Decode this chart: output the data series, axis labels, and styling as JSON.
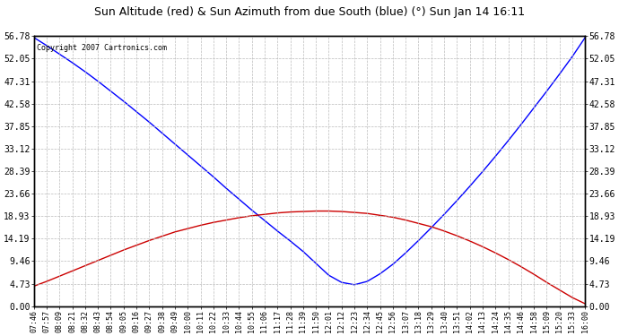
{
  "title": "Sun Altitude (red) & Sun Azimuth from due South (blue) (°) Sun Jan 14 16:11",
  "copyright": "Copyright 2007 Cartronics.com",
  "background_color": "#ffffff",
  "plot_bg_color": "#ffffff",
  "grid_color": "#bbbbbb",
  "y_ticks": [
    0.0,
    4.73,
    9.46,
    14.19,
    18.93,
    23.66,
    28.39,
    33.12,
    37.85,
    42.58,
    47.31,
    52.05,
    56.78
  ],
  "y_max": 56.78,
  "y_min": 0.0,
  "x_labels": [
    "07:46",
    "07:57",
    "08:09",
    "08:21",
    "08:32",
    "08:43",
    "08:54",
    "09:05",
    "09:16",
    "09:27",
    "09:38",
    "09:49",
    "10:00",
    "10:11",
    "10:22",
    "10:33",
    "10:44",
    "10:55",
    "11:06",
    "11:17",
    "11:28",
    "11:39",
    "11:50",
    "12:01",
    "12:12",
    "12:23",
    "12:34",
    "12:45",
    "12:56",
    "13:07",
    "13:18",
    "13:29",
    "13:40",
    "13:51",
    "14:02",
    "14:13",
    "14:24",
    "14:35",
    "14:46",
    "14:58",
    "15:09",
    "15:20",
    "15:33",
    "16:00"
  ],
  "blue_line_color": "#0000ff",
  "red_line_color": "#cc0000",
  "blue_values": [
    56.5,
    54.8,
    53.0,
    51.2,
    49.3,
    47.3,
    45.2,
    43.1,
    40.9,
    38.7,
    36.4,
    34.1,
    31.8,
    29.5,
    27.2,
    24.8,
    22.5,
    20.2,
    18.0,
    15.8,
    13.7,
    11.5,
    9.0,
    6.5,
    5.0,
    4.5,
    5.2,
    6.8,
    8.8,
    11.2,
    13.8,
    16.5,
    19.3,
    22.2,
    25.2,
    28.3,
    31.5,
    34.8,
    38.2,
    41.7,
    45.2,
    48.8,
    52.5,
    56.5
  ],
  "red_values": [
    4.2,
    5.2,
    6.3,
    7.4,
    8.5,
    9.6,
    10.7,
    11.8,
    12.8,
    13.8,
    14.7,
    15.6,
    16.3,
    17.0,
    17.6,
    18.1,
    18.6,
    19.0,
    19.3,
    19.6,
    19.8,
    19.9,
    20.0,
    20.0,
    19.9,
    19.7,
    19.5,
    19.1,
    18.7,
    18.1,
    17.4,
    16.7,
    15.8,
    14.8,
    13.7,
    12.5,
    11.2,
    9.8,
    8.3,
    6.7,
    5.0,
    3.4,
    1.8,
    0.5
  ]
}
